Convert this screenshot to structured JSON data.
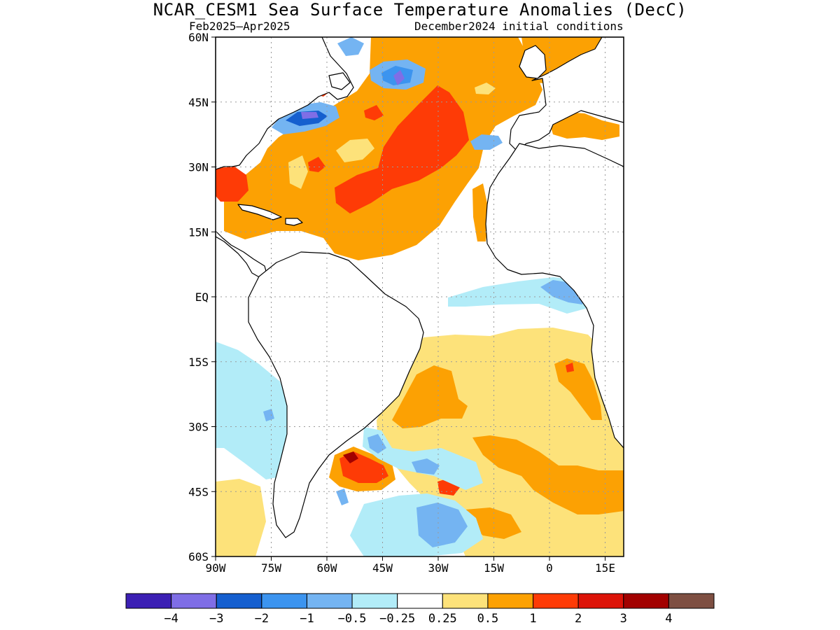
{
  "title": "NCAR_CESM1 Sea Surface Temperature Anomalies (DecC)",
  "subtitle_left": "Feb2025–Apr2025",
  "subtitle_right": "December2024 initial conditions",
  "map": {
    "lon_range": [
      -90,
      20
    ],
    "lat_range": [
      -60,
      60
    ],
    "x_ticks": [
      {
        "value": -90,
        "label": "90W"
      },
      {
        "value": -75,
        "label": "75W"
      },
      {
        "value": -60,
        "label": "60W"
      },
      {
        "value": -45,
        "label": "45W"
      },
      {
        "value": -30,
        "label": "30W"
      },
      {
        "value": -15,
        "label": "15W"
      },
      {
        "value": 0,
        "label": "0"
      },
      {
        "value": 15,
        "label": "15E"
      }
    ],
    "y_ticks": [
      {
        "value": 60,
        "label": "60N"
      },
      {
        "value": 45,
        "label": "45N"
      },
      {
        "value": 30,
        "label": "30N"
      },
      {
        "value": 15,
        "label": "15N"
      },
      {
        "value": 0,
        "label": "EQ"
      },
      {
        "value": -15,
        "label": "15S"
      },
      {
        "value": -30,
        "label": "30S"
      },
      {
        "value": -45,
        "label": "45S"
      },
      {
        "value": -60,
        "label": "60S"
      }
    ],
    "grid": "dotted"
  },
  "colorbar": {
    "colors": [
      "#3c1fb4",
      "#7f6ee6",
      "#155fcf",
      "#3c94ef",
      "#74b4f2",
      "#b2ecf8",
      "#ffffff",
      "#fde27a",
      "#fca103",
      "#fe3b06",
      "#dc1308",
      "#a20100",
      "#7e4f42"
    ],
    "labels": [
      "−4",
      "−3",
      "−2",
      "−1",
      "−0.5",
      "−0.25",
      "0.25",
      "0.5",
      "1",
      "2",
      "3",
      "4"
    ]
  }
}
